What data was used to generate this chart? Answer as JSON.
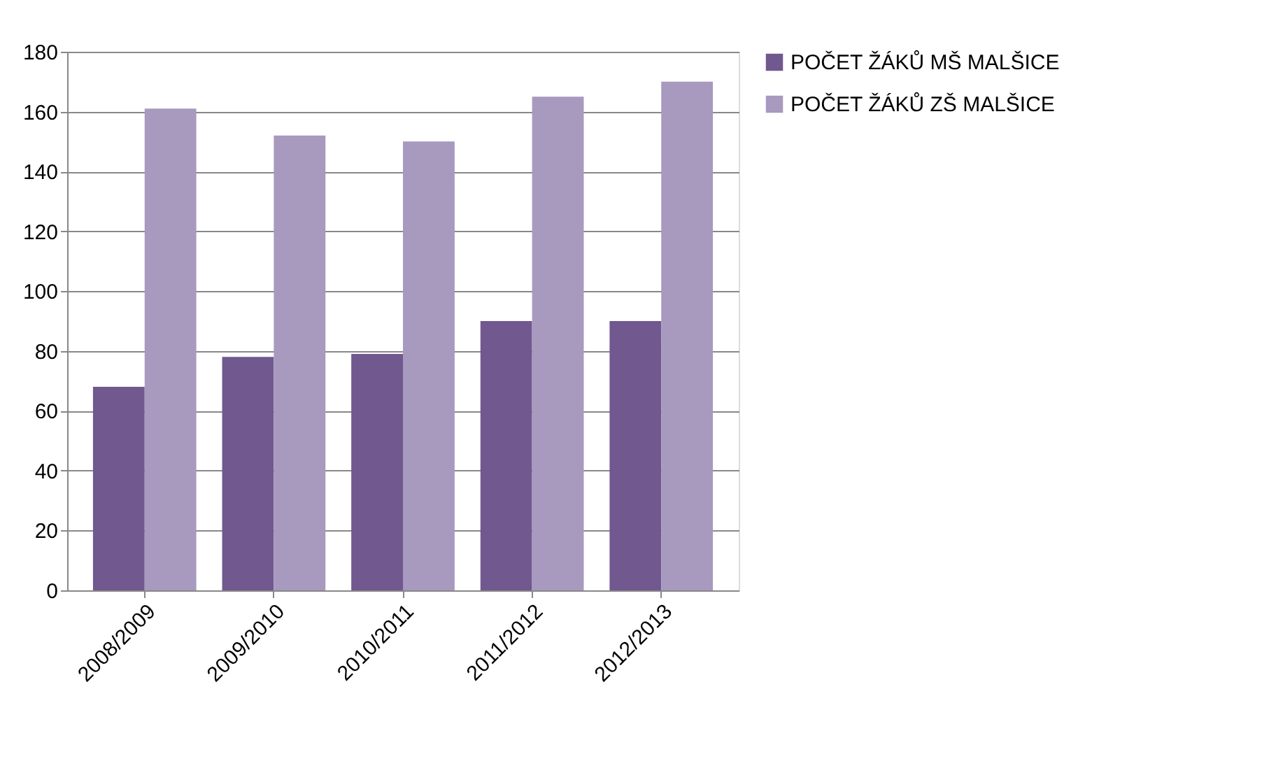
{
  "chart_data": {
    "type": "bar",
    "categories": [
      "2008/2009",
      "2009/2010",
      "2010/2011",
      "2011/2012",
      "2012/2013"
    ],
    "series": [
      {
        "name": "POČET ŽÁKŮ MŠ MALŠICE",
        "color": "#71588f",
        "values": [
          68,
          78,
          79,
          90,
          90
        ]
      },
      {
        "name": "POČET ŽÁKŮ ZŠ MALŠICE",
        "color": "#a899bf",
        "values": [
          161,
          152,
          150,
          165,
          170
        ]
      }
    ],
    "ylim": [
      0,
      180
    ],
    "yticks": [
      0,
      20,
      40,
      60,
      80,
      100,
      120,
      140,
      160,
      180
    ],
    "grid": "y",
    "legend": "right"
  }
}
